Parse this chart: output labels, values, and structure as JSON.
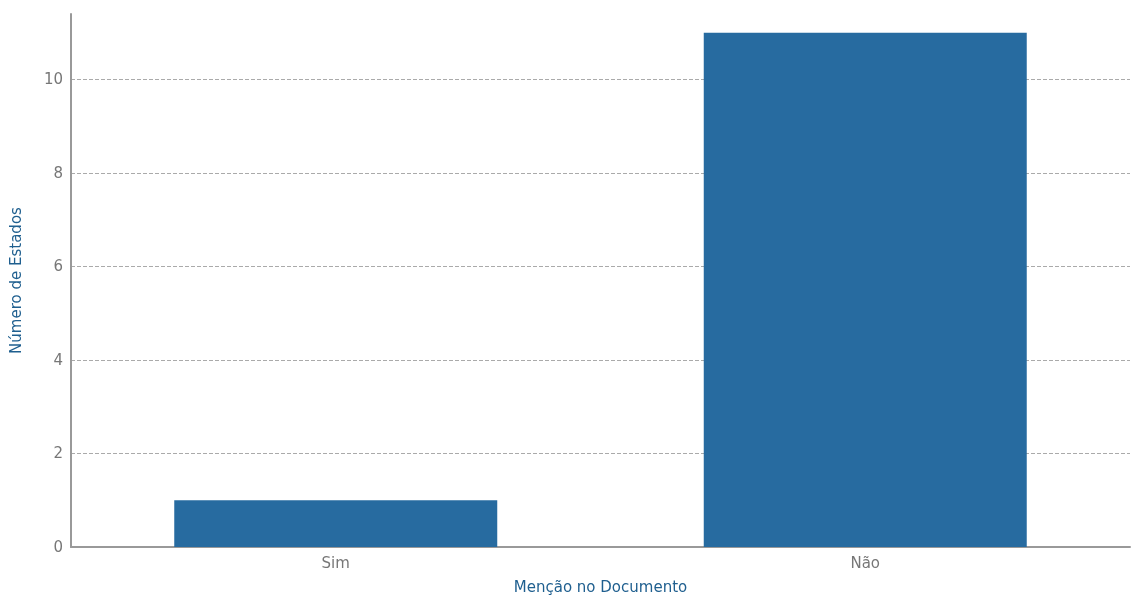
{
  "chart_data": {
    "type": "bar",
    "xlabel": "Menção no Documento",
    "ylabel": "Número de Estados",
    "categories": [
      "Sim",
      "Não"
    ],
    "values": [
      1,
      11
    ],
    "color": "#276ba0",
    "ylim": [
      0,
      11.4
    ],
    "yticks": [
      0,
      2,
      4,
      6,
      8,
      10
    ],
    "grid": "y"
  }
}
